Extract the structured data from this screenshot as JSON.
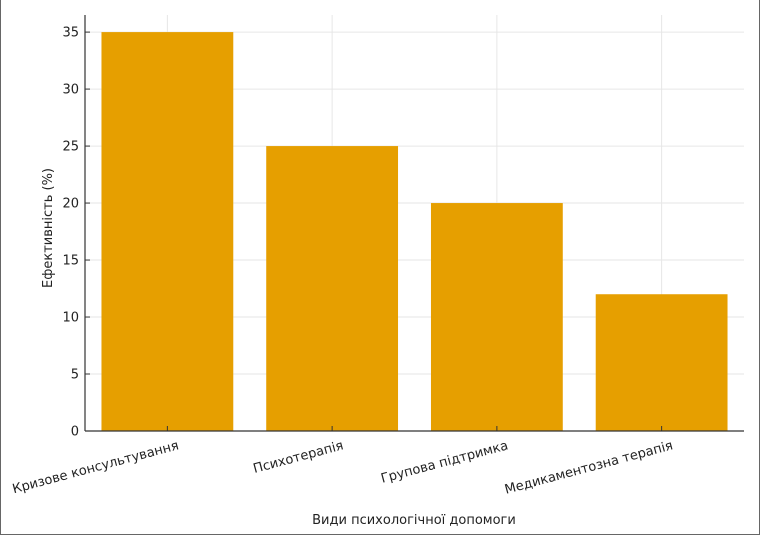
{
  "chart_data": {
    "type": "bar",
    "categories": [
      "Кризове консультування",
      "Психотерапія",
      "Групова підтримка",
      "Медикаментозна терапія"
    ],
    "values": [
      35,
      25,
      20,
      12
    ],
    "xlabel": "Види психологічної допомоги",
    "ylabel": "Ефективність (%)",
    "ylim": [
      0,
      36.5
    ],
    "yticks": [
      0,
      5,
      10,
      15,
      20,
      25,
      30,
      35
    ],
    "grid": true,
    "bar_color": "#E69F00",
    "grid_color": "#e6e6e6",
    "axis_color": "#333333"
  }
}
